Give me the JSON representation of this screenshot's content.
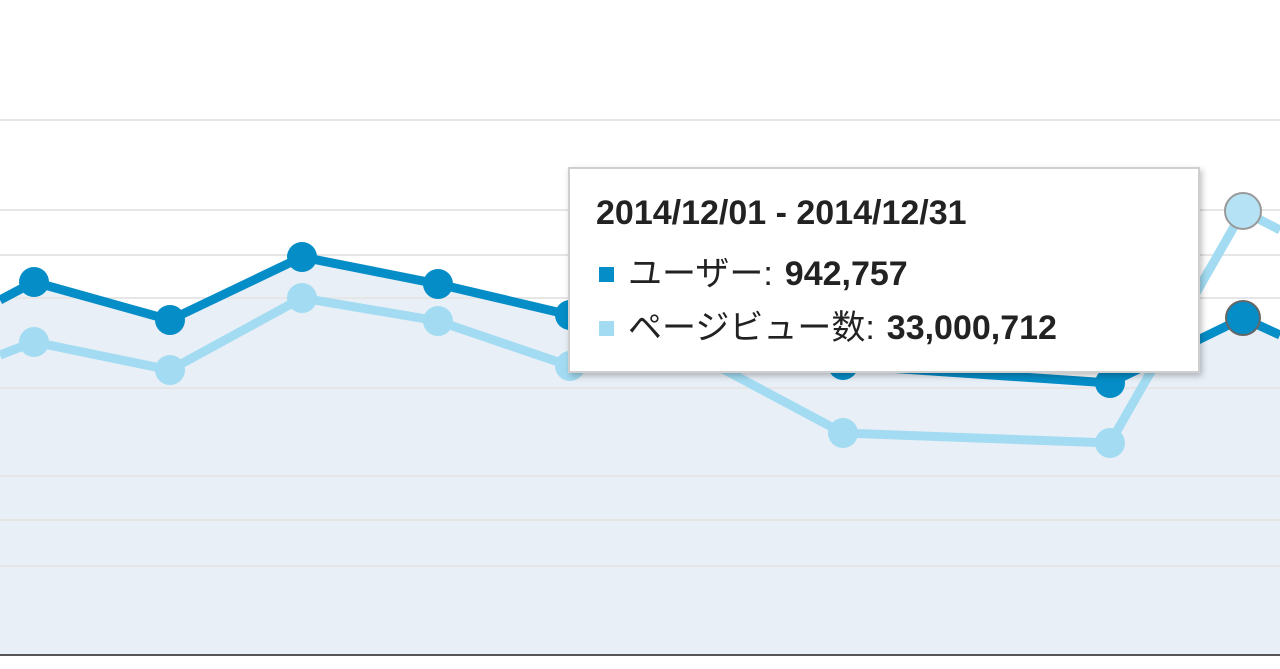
{
  "tooltip": {
    "title": "2014/12/01 - 2014/12/31",
    "rows": [
      {
        "label": "ユーザー:",
        "value": "942,757",
        "color": "#058dc7"
      },
      {
        "label": "ページビュー数:",
        "value": "33,000,712",
        "color": "#a3dcf2"
      }
    ]
  }
}
